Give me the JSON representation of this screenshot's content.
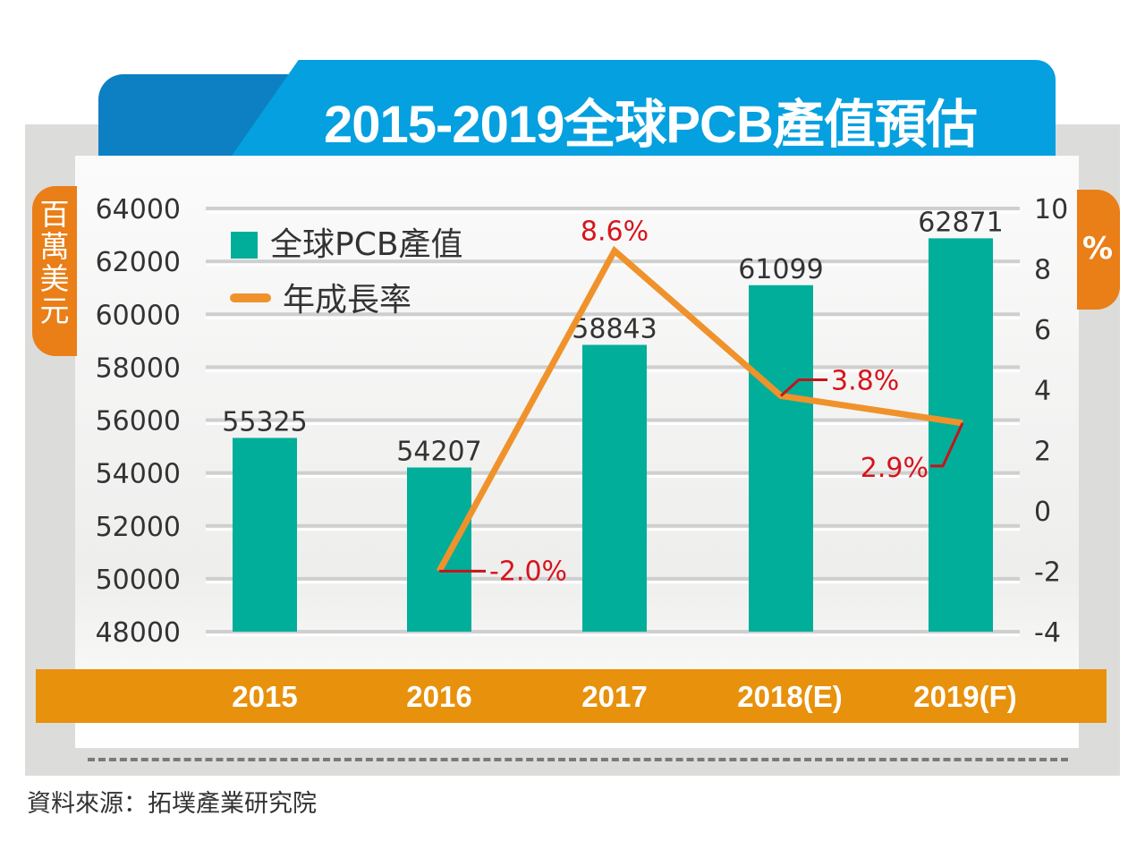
{
  "chart_data": {
    "type": "bar+line",
    "title": "2015-2019全球PCB產值預估",
    "ylabel_left": "百萬美元",
    "ylabel_right": "%",
    "categories": [
      "2015",
      "2016",
      "2017",
      "2018(E)",
      "2019(F)"
    ],
    "ylim_left": [
      48000,
      64000
    ],
    "yticks_left": [
      "64000",
      "62000",
      "60000",
      "58000",
      "56000",
      "54000",
      "52000",
      "50000",
      "48000"
    ],
    "ylim_right": [
      -4,
      10
    ],
    "yticks_right": [
      "10",
      "8",
      "6",
      "4",
      "2",
      "0",
      "-2",
      "-4"
    ],
    "grid": true,
    "legend_position": "top-left",
    "series": [
      {
        "name": "全球PCB產值",
        "type": "bar",
        "color": "#00ae9a",
        "values": [
          55325,
          54207,
          58843,
          61099,
          62871
        ],
        "labels": [
          "55325",
          "54207",
          "58843",
          "61099",
          "62871"
        ]
      },
      {
        "name": "年成長率",
        "type": "line",
        "color": "#f0922b",
        "values": [
          null,
          -2.0,
          8.6,
          3.8,
          2.9
        ],
        "labels": [
          "",
          "-2.0%",
          "8.6%",
          "3.8%",
          "2.9%"
        ]
      }
    ]
  },
  "source": "資料來源：拓墣產業研究院",
  "colors": {
    "title_bg": "#05a0df",
    "axis_tab": "#ea7e17",
    "xband": "#e8910c",
    "annotation": "#d7141c"
  }
}
